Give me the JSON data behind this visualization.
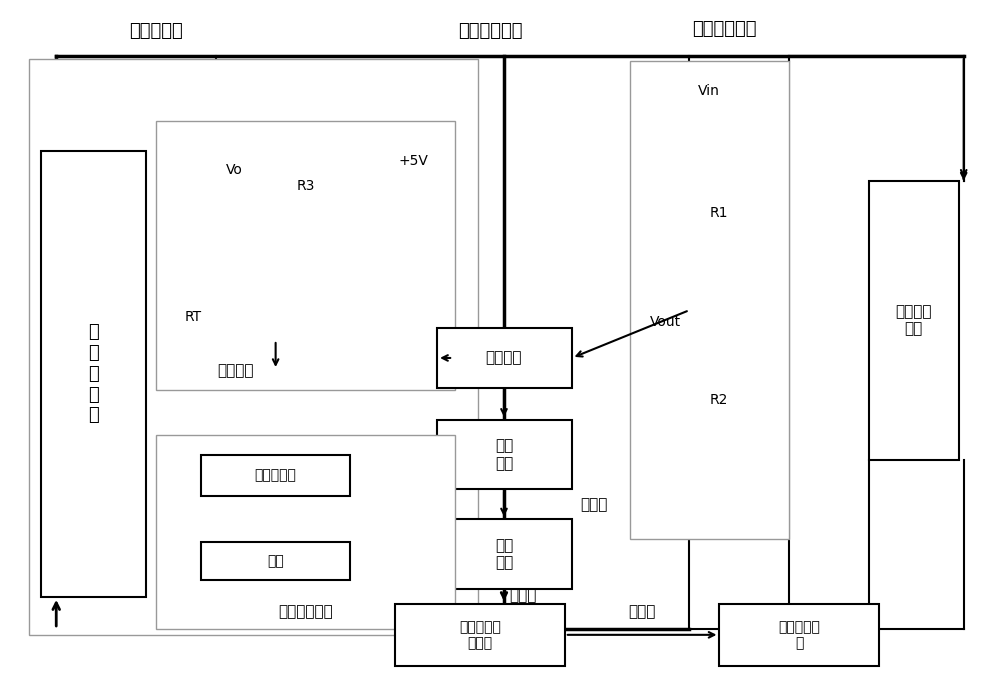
{
  "bg": "#ffffff",
  "lc": "#000000",
  "gray": "#999999",
  "labels": {
    "solar_top": "太阳电池阵",
    "bus_label": "一次电源母线",
    "volt_ckt": "电压采集电路",
    "solar_box": "太\n阳\n电\n池\n阵",
    "temp_ckt": "测温电路",
    "adc": "模数转换",
    "mcu": "微处\n理器",
    "comm": "通信\n模块",
    "opamp": "运算放大器",
    "hall": "霍尔",
    "curr_ckt": "电流采集电路",
    "info_unit": "星上信息处\n理单元",
    "comm_unit": "星地通信单\n元",
    "load": "星上用电\n设备",
    "Vo": "Vo",
    "R3": "R3",
    "p5V": "+5V",
    "RT": "RT",
    "Vin": "Vin",
    "R1": "R1",
    "Vout": "Vout",
    "R2": "R2",
    "tele1": "遥测包",
    "tele2": "遥测包",
    "tele3": "遥测包"
  },
  "font_cjk": [
    "SimHei",
    "Microsoft YaHei",
    "WenQuanYi Micro Hei",
    "Noto Sans CJK SC",
    "DejaVu Sans"
  ]
}
